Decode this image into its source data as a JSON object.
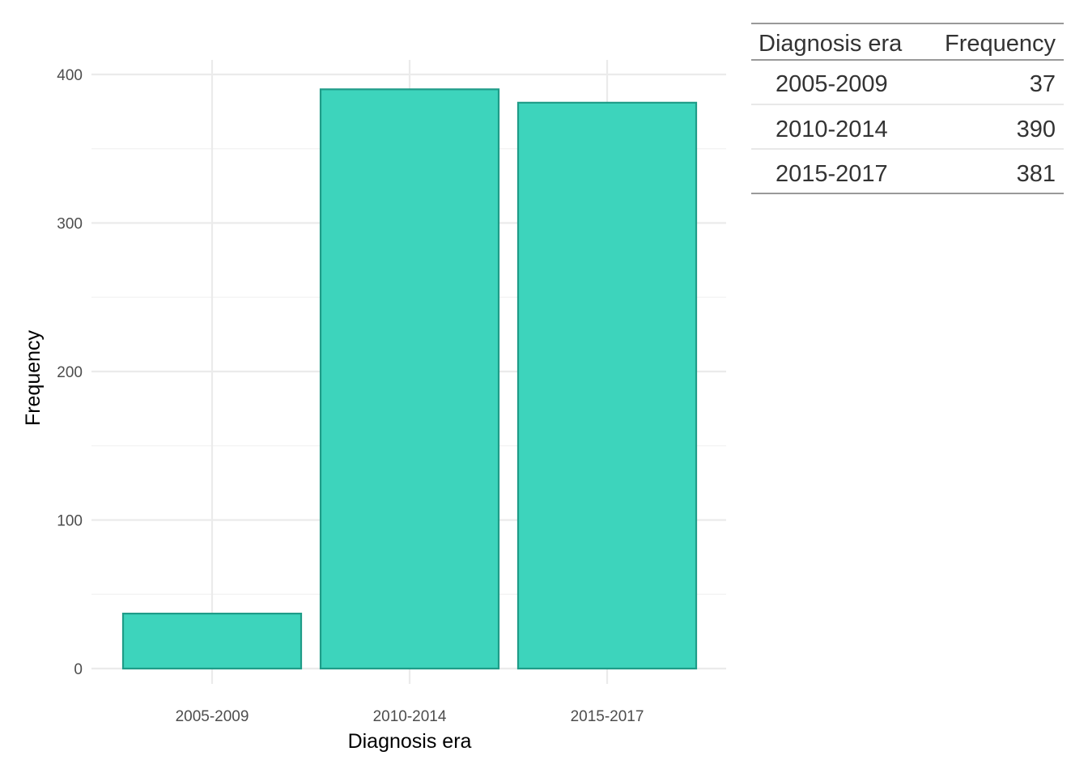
{
  "chart_data": {
    "type": "bar",
    "categories": [
      "2005-2009",
      "2010-2014",
      "2015-2017"
    ],
    "values": [
      37,
      390,
      381
    ],
    "xlabel": "Diagnosis era",
    "ylabel": "Frequency",
    "ylim": [
      0,
      410
    ],
    "yticks": [
      0,
      100,
      200,
      300,
      400
    ],
    "y_minor_ticks": [
      50,
      150,
      250,
      350
    ],
    "grid": true,
    "legend": "none"
  },
  "colors": {
    "bar_fill": "#3dd4bc",
    "bar_stroke": "#1f9c88",
    "grid_major": "#ebebeb",
    "grid_minor": "#f2f2f2",
    "tick_text": "#4d4d4d",
    "table_rule": "#999999"
  },
  "table": {
    "headers": [
      "Diagnosis era",
      "Frequency"
    ],
    "rows": [
      [
        "2005-2009",
        "37"
      ],
      [
        "2010-2014",
        "390"
      ],
      [
        "2015-2017",
        "381"
      ]
    ]
  }
}
